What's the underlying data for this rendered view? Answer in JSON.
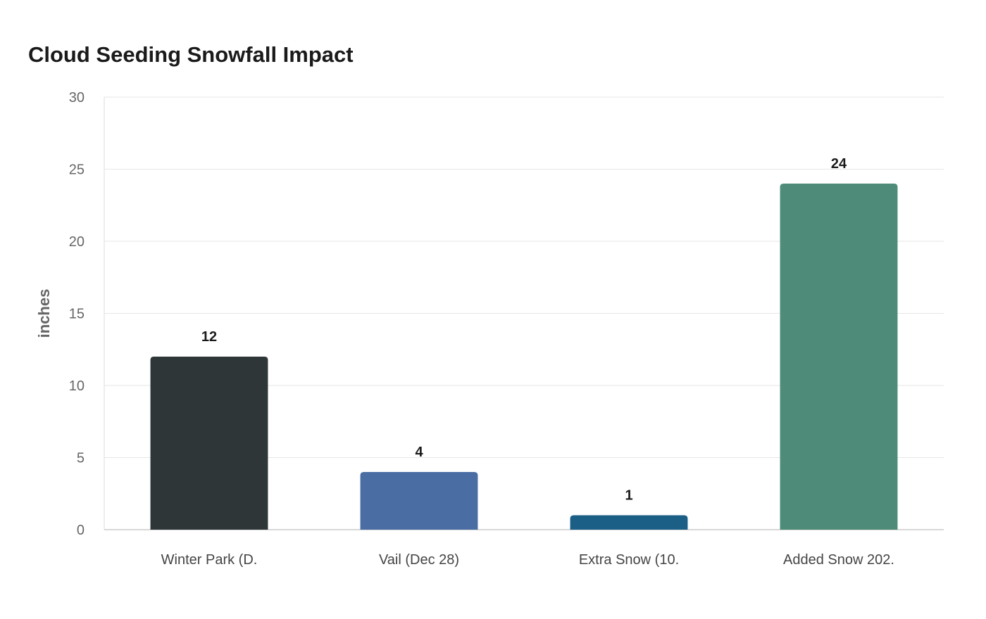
{
  "chart_data": {
    "type": "bar",
    "title": "Cloud Seeding Snowfall Impact",
    "ylabel": "inches",
    "xlabel": "",
    "categories": [
      "Winter Park (D.",
      "Vail (Dec 28)",
      "Extra Snow (10.",
      "Added Snow 202."
    ],
    "values": [
      12,
      4,
      1,
      24
    ],
    "value_labels": [
      "12",
      "4",
      "1",
      "24"
    ],
    "colors": [
      "#2e3638",
      "#4a6ea3",
      "#1b5f87",
      "#4e8c79"
    ],
    "ylim": [
      0,
      30
    ],
    "yticks": [
      0,
      5,
      10,
      15,
      20,
      25,
      30
    ],
    "ytick_labels": [
      "0",
      "5",
      "10",
      "15",
      "20",
      "25",
      "30"
    ],
    "grid": true,
    "legend": "none"
  }
}
